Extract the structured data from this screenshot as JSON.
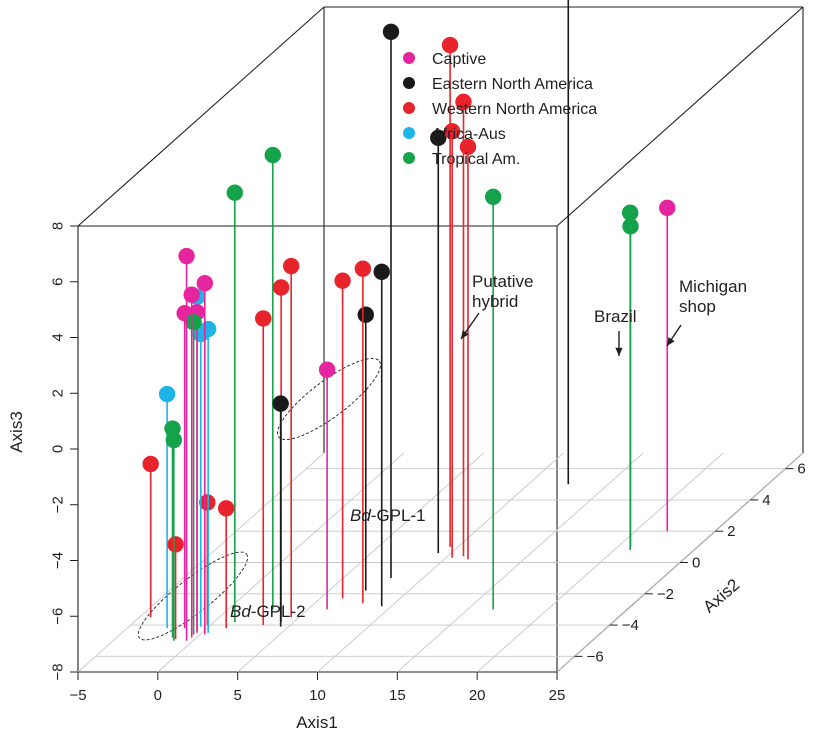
{
  "chart_data": {
    "type": "scatter",
    "subtype": "3d-scatter-with-drop-lines",
    "title": "",
    "xlabel": "Axis1",
    "ylabel": "Axis2",
    "zlabel": "Axis3",
    "xlim": [
      -5,
      25
    ],
    "ylim": [
      -7,
      7
    ],
    "zlim": [
      -8,
      8
    ],
    "x_ticks": [
      "−5",
      "0",
      "5",
      "10",
      "15",
      "20",
      "25"
    ],
    "y_ticks": [
      "−6",
      "−4",
      "−2",
      "0",
      "2",
      "4",
      "6"
    ],
    "z_ticks": [
      "−8",
      "−6",
      "−4",
      "−2",
      "0",
      "2",
      "4",
      "6",
      "8"
    ],
    "grid": true,
    "legend_position": "top-center",
    "legend": [
      {
        "label": "Captive",
        "color": "#e6249d"
      },
      {
        "label": "Eastern North America",
        "color": "#1a1a1a"
      },
      {
        "label": "Western North America",
        "color": "#e8232b"
      },
      {
        "label": "Africa-Aus",
        "color": "#1eb4e8"
      },
      {
        "label": "Tropical Am.",
        "color": "#14a34a"
      }
    ],
    "series": [
      {
        "name": "Captive",
        "color": "#e6249d",
        "points": [
          {
            "x": -0.4,
            "y": -5.0,
            "z": 5.8
          },
          {
            "x": -0.3,
            "y": -4.8,
            "z": 4.3
          },
          {
            "x": 0.3,
            "y": -4.6,
            "z": 4.6
          },
          {
            "x": -1.4,
            "y": -4.2,
            "z": 3.3
          },
          {
            "x": -0.3,
            "y": -4.5,
            "z": 3.5
          },
          {
            "x": 6.2,
            "y": -3.0,
            "z": 0.6
          },
          {
            "x": 22.0,
            "y": 2.0,
            "z": 3.6
          }
        ]
      },
      {
        "name": "Eastern North America",
        "color": "#1a1a1a",
        "points": [
          {
            "x": 8.0,
            "y": -1.0,
            "z": 11.6
          },
          {
            "x": 12.5,
            "y": 5.0,
            "z": 10.5
          },
          {
            "x": 9.2,
            "y": 0.6,
            "z": 6.9
          },
          {
            "x": 9.4,
            "y": -2.8,
            "z": 4.0
          },
          {
            "x": 7.3,
            "y": -1.8,
            "z": 1.9
          },
          {
            "x": 4.5,
            "y": -4.1,
            "z": 0.0
          }
        ]
      },
      {
        "name": "Western North America",
        "color": "#e8232b",
        "points": [
          {
            "x": 9.5,
            "y": 1.0,
            "z": 10.0
          },
          {
            "x": 11.0,
            "y": 0.4,
            "z": 8.3
          },
          {
            "x": 10.4,
            "y": 0.3,
            "z": 7.3
          },
          {
            "x": 11.5,
            "y": 0.2,
            "z": 6.8
          },
          {
            "x": 4.5,
            "y": -3.5,
            "z": 4.6
          },
          {
            "x": 4.2,
            "y": -3.8,
            "z": 4.0
          },
          {
            "x": 8.0,
            "y": -2.6,
            "z": 4.0
          },
          {
            "x": 6.4,
            "y": -2.3,
            "z": 3.4
          },
          {
            "x": 3.3,
            "y": -4.0,
            "z": 3.0
          },
          {
            "x": -4.3,
            "y": -3.5,
            "z": -2.5
          },
          {
            "x": -0.2,
            "y": -4.0,
            "z": -3.6
          },
          {
            "x": 1.2,
            "y": -4.2,
            "z": -3.7
          },
          {
            "x": -1.2,
            "y": -4.9,
            "z": -4.6
          }
        ]
      },
      {
        "name": "Africa-Aus",
        "color": "#1eb4e8",
        "points": [
          {
            "x": -0.4,
            "y": -4.4,
            "z": 4.0
          },
          {
            "x": 0.4,
            "y": -4.5,
            "z": 2.9
          },
          {
            "x": -0.5,
            "y": -4.1,
            "z": 2.5
          },
          {
            "x": -2.5,
            "y": -4.2,
            "z": 0.4
          }
        ]
      },
      {
        "name": "Tropical Am.",
        "color": "#14a34a",
        "points": [
          {
            "x": 2.8,
            "y": -3.0,
            "z": 8.3
          },
          {
            "x": 1.3,
            "y": -3.8,
            "z": 7.4
          },
          {
            "x": -0.4,
            "y": -4.6,
            "z": 3.2
          },
          {
            "x": -1.5,
            "y": -4.8,
            "z": -0.5
          },
          {
            "x": -1.2,
            "y": -5.0,
            "z": -0.8
          },
          {
            "x": 16.6,
            "y": -3.0,
            "z": 6.8
          },
          {
            "x": 21.0,
            "y": 0.8,
            "z": 4.1
          },
          {
            "x": 20.8,
            "y": 1.0,
            "z": 3.5
          }
        ]
      }
    ],
    "annotations": [
      {
        "lines": [
          "Putative",
          "hybrid"
        ]
      },
      {
        "lines": [
          "Brazil"
        ]
      },
      {
        "lines": [
          "Michigan",
          "shop"
        ]
      },
      {
        "italic": "Bd",
        "text": "-GPL-1"
      },
      {
        "italic": "Bd",
        "text": "-GPL-2"
      }
    ]
  }
}
